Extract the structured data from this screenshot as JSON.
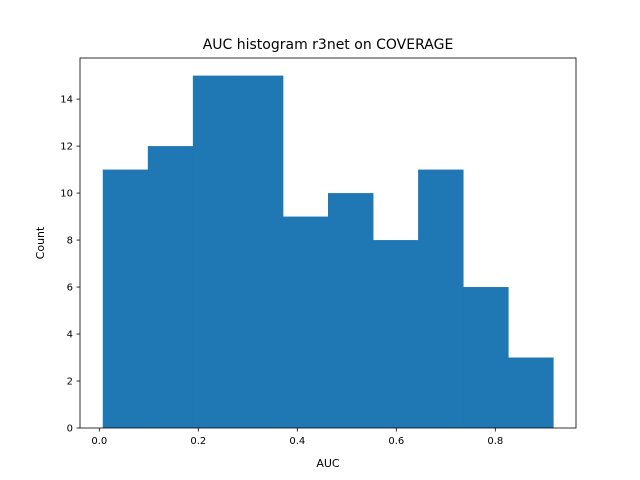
{
  "chart_data": {
    "type": "bar",
    "title": "AUC histogram r3net on COVERAGE",
    "xlabel": "AUC",
    "ylabel": "Count",
    "bin_edges": [
      0.007,
      0.098,
      0.189,
      0.28,
      0.371,
      0.462,
      0.553,
      0.644,
      0.735,
      0.826,
      0.917
    ],
    "values": [
      11,
      12,
      15,
      15,
      9,
      10,
      8,
      11,
      6,
      3
    ],
    "xlim": [
      -0.039,
      0.963
    ],
    "ylim": [
      0,
      15.75
    ],
    "xticks": [
      0.0,
      0.2,
      0.4,
      0.6,
      0.8
    ],
    "xtick_labels": [
      "0.0",
      "0.2",
      "0.4",
      "0.6",
      "0.8"
    ],
    "yticks": [
      0,
      2,
      4,
      6,
      8,
      10,
      12,
      14
    ],
    "ytick_labels": [
      "0",
      "2",
      "4",
      "6",
      "8",
      "10",
      "12",
      "14"
    ],
    "bar_color": "#1f77b4",
    "grid": false,
    "legend": "none"
  }
}
